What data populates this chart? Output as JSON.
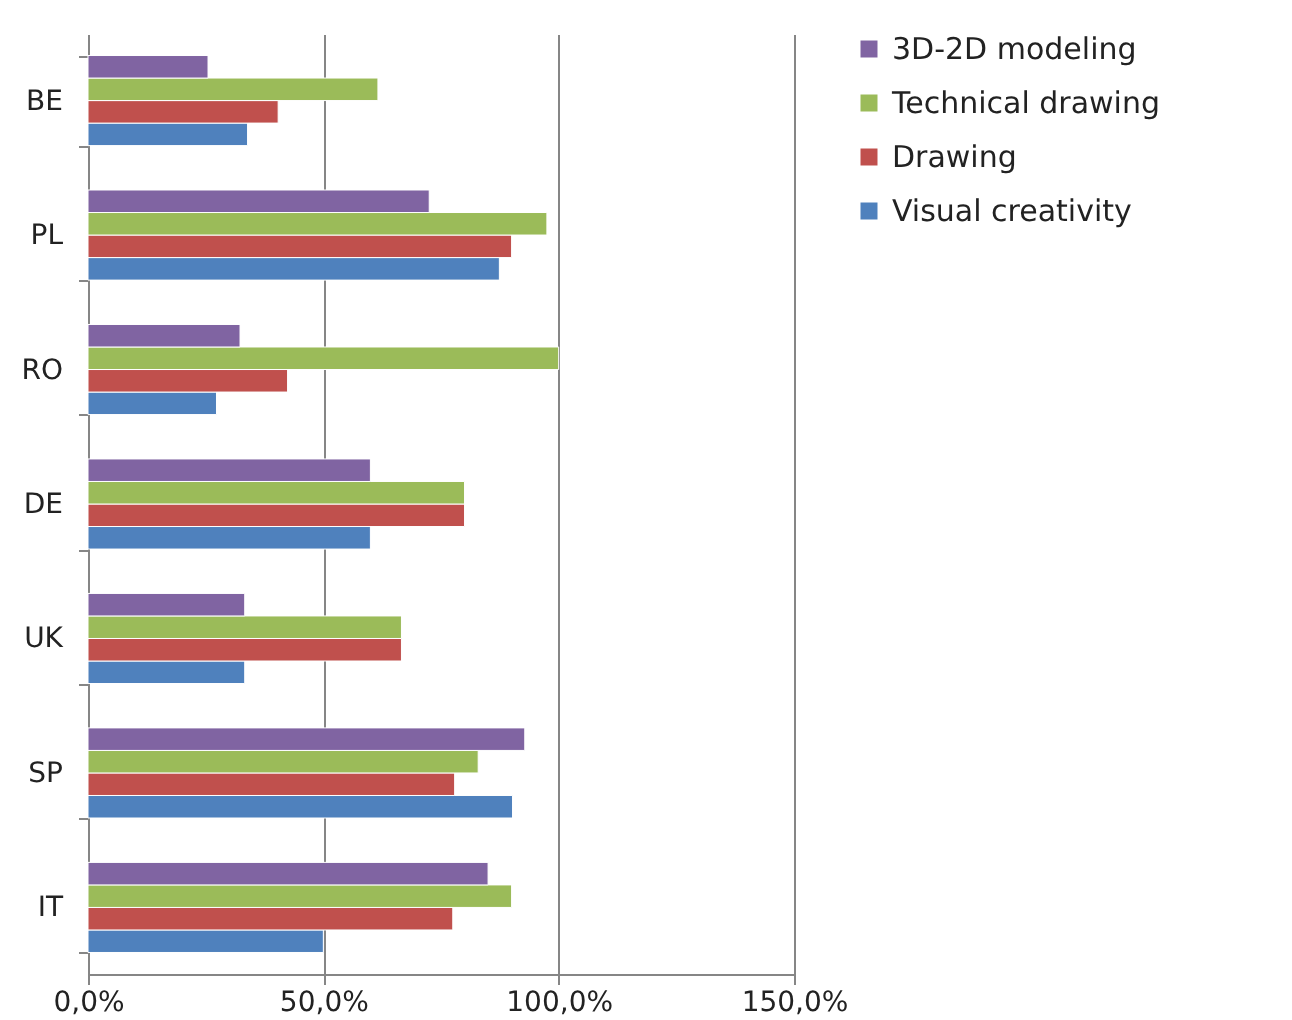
{
  "chart_data": {
    "type": "bar",
    "orientation": "horizontal",
    "categories": [
      "BE",
      "PL",
      "RO",
      "DE",
      "UK",
      "SP",
      "IT"
    ],
    "series": [
      {
        "name": "Visual creativity",
        "color": "#4f81bd",
        "values": [
          33.9,
          87.4,
          27.3,
          60,
          33.3,
          90.2,
          50
        ]
      },
      {
        "name": "Drawing",
        "color": "#c0504d",
        "values": [
          40.4,
          90,
          42.4,
          80,
          66.6,
          77.9,
          77.5
        ]
      },
      {
        "name": "Technical drawing",
        "color": "#9bbb59",
        "values": [
          61.6,
          97.5,
          100,
          80,
          66.6,
          82.9,
          90
        ]
      },
      {
        "name": "3D-2D modeling",
        "color": "#8064a2",
        "values": [
          25.5,
          72.5,
          32.3,
          60,
          33.3,
          92.8,
          85
        ]
      }
    ],
    "xlim": [
      0,
      150
    ],
    "xticks": [
      {
        "value": 0,
        "label": "0,0%"
      },
      {
        "value": 50,
        "label": "50,0%"
      },
      {
        "value": 100,
        "label": "100,0%"
      },
      {
        "value": 150,
        "label": "150,0%"
      }
    ],
    "grid": "x",
    "legend": "right"
  }
}
